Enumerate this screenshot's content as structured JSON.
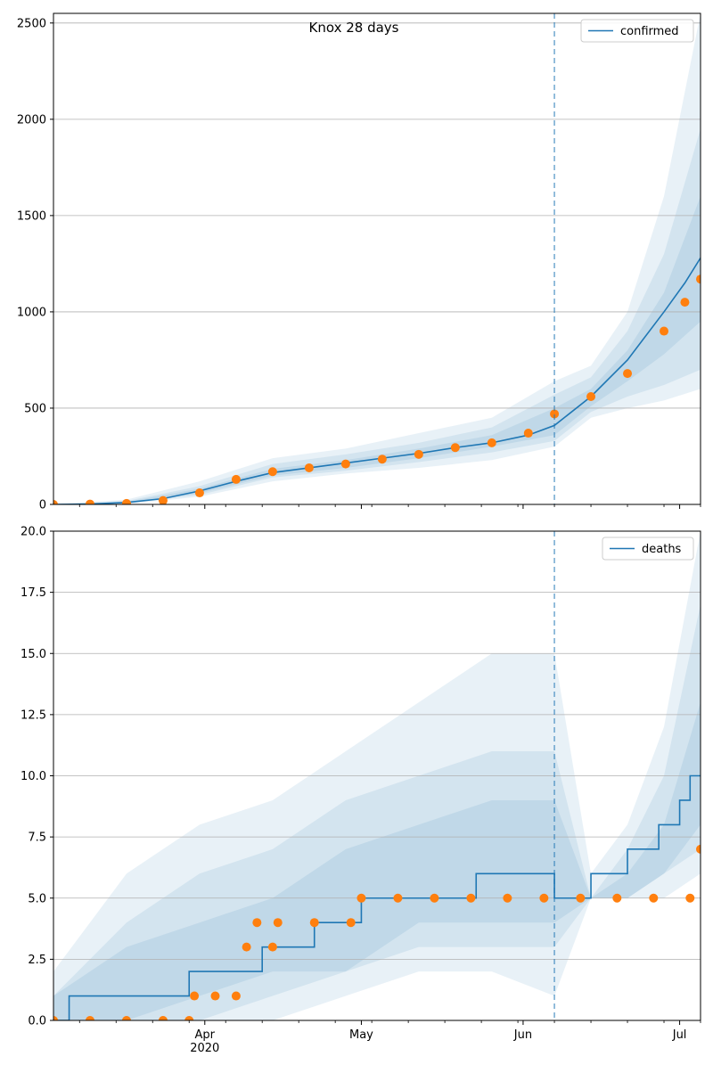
{
  "chart_data": [
    {
      "type": "line",
      "title": "Knox 28 days",
      "xlabel": "",
      "ylabel": "",
      "x_ticks": [
        "Apr\n2020",
        "May",
        "Jun",
        "Jul"
      ],
      "y_ticks": [
        "0",
        "500",
        "1000",
        "1500",
        "2000",
        "2500"
      ],
      "ylim": [
        0,
        2550
      ],
      "xlim": [
        "2020-03-03",
        "2020-07-05"
      ],
      "forecast_start": "2020-06-07",
      "legend": {
        "position": "top-right",
        "entries": [
          {
            "label": "confirmed",
            "color": "#1f77b4"
          }
        ]
      },
      "grid": "horizontal",
      "series": [
        {
          "name": "confirmed",
          "kind": "model-median-line",
          "x": [
            "2020-03-03",
            "2020-03-10",
            "2020-03-17",
            "2020-03-24",
            "2020-03-31",
            "2020-04-07",
            "2020-04-14",
            "2020-04-21",
            "2020-04-28",
            "2020-05-05",
            "2020-05-12",
            "2020-05-19",
            "2020-05-26",
            "2020-06-02",
            "2020-06-07",
            "2020-06-14",
            "2020-06-21",
            "2020-06-28",
            "2020-07-02",
            "2020-07-05"
          ],
          "values": [
            0,
            2,
            10,
            30,
            70,
            120,
            165,
            190,
            215,
            240,
            265,
            295,
            320,
            360,
            410,
            560,
            750,
            1000,
            1150,
            1280
          ]
        },
        {
          "name": "",
          "kind": "observed-points",
          "x": [
            "2020-03-03",
            "2020-03-10",
            "2020-03-17",
            "2020-03-24",
            "2020-03-31",
            "2020-04-07",
            "2020-04-14",
            "2020-04-21",
            "2020-04-28",
            "2020-05-05",
            "2020-05-12",
            "2020-05-19",
            "2020-05-26",
            "2020-06-02",
            "2020-06-07",
            "2020-06-14",
            "2020-06-21",
            "2020-06-28",
            "2020-07-02",
            "2020-07-05"
          ],
          "values": [
            0,
            2,
            5,
            20,
            60,
            130,
            170,
            190,
            210,
            235,
            260,
            295,
            320,
            370,
            470,
            560,
            680,
            900,
            1050,
            1170
          ]
        }
      ],
      "bands": {
        "x": [
          "2020-03-03",
          "2020-03-17",
          "2020-03-31",
          "2020-04-14",
          "2020-04-28",
          "2020-05-12",
          "2020-05-26",
          "2020-06-07",
          "2020-06-14",
          "2020-06-21",
          "2020-06-28",
          "2020-07-05"
        ],
        "outer_low": [
          0,
          2,
          40,
          120,
          160,
          190,
          230,
          300,
          450,
          500,
          540,
          600
        ],
        "outer_high": [
          0,
          25,
          120,
          240,
          290,
          370,
          450,
          640,
          720,
          1000,
          1600,
          2550
        ],
        "mid_low": [
          0,
          4,
          50,
          140,
          175,
          220,
          270,
          330,
          480,
          560,
          620,
          700
        ],
        "mid_high": [
          0,
          18,
          95,
          210,
          260,
          320,
          400,
          570,
          660,
          900,
          1300,
          1950
        ],
        "inner_low": [
          0,
          6,
          58,
          150,
          190,
          240,
          300,
          360,
          510,
          640,
          780,
          950
        ],
        "inner_high": [
          0,
          13,
          82,
          185,
          230,
          290,
          360,
          500,
          600,
          800,
          1100,
          1600
        ]
      }
    },
    {
      "type": "line",
      "title": "",
      "xlabel": "",
      "ylabel": "",
      "x_ticks": [
        "Apr\n2020",
        "May",
        "Jun",
        "Jul"
      ],
      "y_ticks": [
        "0.0",
        "2.5",
        "5.0",
        "7.5",
        "10.0",
        "12.5",
        "15.0",
        "17.5",
        "20.0"
      ],
      "ylim": [
        0,
        20
      ],
      "xlim": [
        "2020-03-03",
        "2020-07-05"
      ],
      "forecast_start": "2020-06-07",
      "legend": {
        "position": "top-right",
        "entries": [
          {
            "label": "deaths",
            "color": "#1f77b4"
          }
        ]
      },
      "grid": "horizontal",
      "series": [
        {
          "name": "deaths",
          "kind": "model-median-line",
          "x": [
            "2020-03-03",
            "2020-03-06",
            "2020-03-06",
            "2020-03-29",
            "2020-03-29",
            "2020-04-12",
            "2020-04-12",
            "2020-04-22",
            "2020-04-22",
            "2020-05-01",
            "2020-05-01",
            "2020-05-23",
            "2020-05-23",
            "2020-06-07",
            "2020-06-07",
            "2020-06-14",
            "2020-06-14",
            "2020-06-21",
            "2020-06-21",
            "2020-06-27",
            "2020-06-27",
            "2020-07-01",
            "2020-07-01",
            "2020-07-03",
            "2020-07-03",
            "2020-07-05"
          ],
          "values": [
            0,
            0,
            1,
            1,
            2,
            2,
            3,
            3,
            4,
            4,
            5,
            5,
            6,
            6,
            5,
            5,
            6,
            6,
            7,
            7,
            8,
            8,
            9,
            9,
            10,
            10
          ]
        },
        {
          "name": "",
          "kind": "observed-points",
          "x": [
            "2020-03-03",
            "2020-03-10",
            "2020-03-17",
            "2020-03-24",
            "2020-03-29",
            "2020-03-30",
            "2020-04-03",
            "2020-04-07",
            "2020-04-09",
            "2020-04-11",
            "2020-04-14",
            "2020-04-15",
            "2020-04-22",
            "2020-04-29",
            "2020-05-01",
            "2020-05-08",
            "2020-05-15",
            "2020-05-22",
            "2020-05-29",
            "2020-06-05",
            "2020-06-12",
            "2020-06-19",
            "2020-06-26",
            "2020-07-03",
            "2020-07-05"
          ],
          "values": [
            0,
            0,
            0,
            0,
            0,
            1,
            1,
            1,
            3,
            4,
            3,
            4,
            4,
            4,
            5,
            5,
            5,
            5,
            5,
            5,
            5,
            5,
            5,
            5,
            7
          ]
        }
      ],
      "bands": {
        "x": [
          "2020-03-03",
          "2020-03-17",
          "2020-03-31",
          "2020-04-14",
          "2020-04-28",
          "2020-05-12",
          "2020-05-26",
          "2020-06-07",
          "2020-06-14",
          "2020-06-21",
          "2020-06-28",
          "2020-07-05"
        ],
        "outer_low": [
          0,
          0,
          0,
          0,
          1,
          2,
          2,
          1,
          5,
          5,
          5,
          6
        ],
        "outer_high": [
          2,
          6,
          8,
          9,
          11,
          13,
          15,
          15,
          6,
          8,
          12,
          20
        ],
        "mid_low": [
          0,
          0,
          0,
          1,
          2,
          3,
          3,
          3,
          5,
          5,
          6,
          7
        ],
        "mid_high": [
          1,
          4,
          6,
          7,
          9,
          10,
          11,
          11,
          5,
          7,
          10,
          17
        ],
        "inner_low": [
          0,
          0,
          1,
          2,
          2,
          4,
          4,
          4,
          5,
          5,
          6,
          8
        ],
        "inner_high": [
          1,
          3,
          4,
          5,
          7,
          8,
          9,
          9,
          5,
          6,
          8,
          13
        ]
      }
    }
  ]
}
